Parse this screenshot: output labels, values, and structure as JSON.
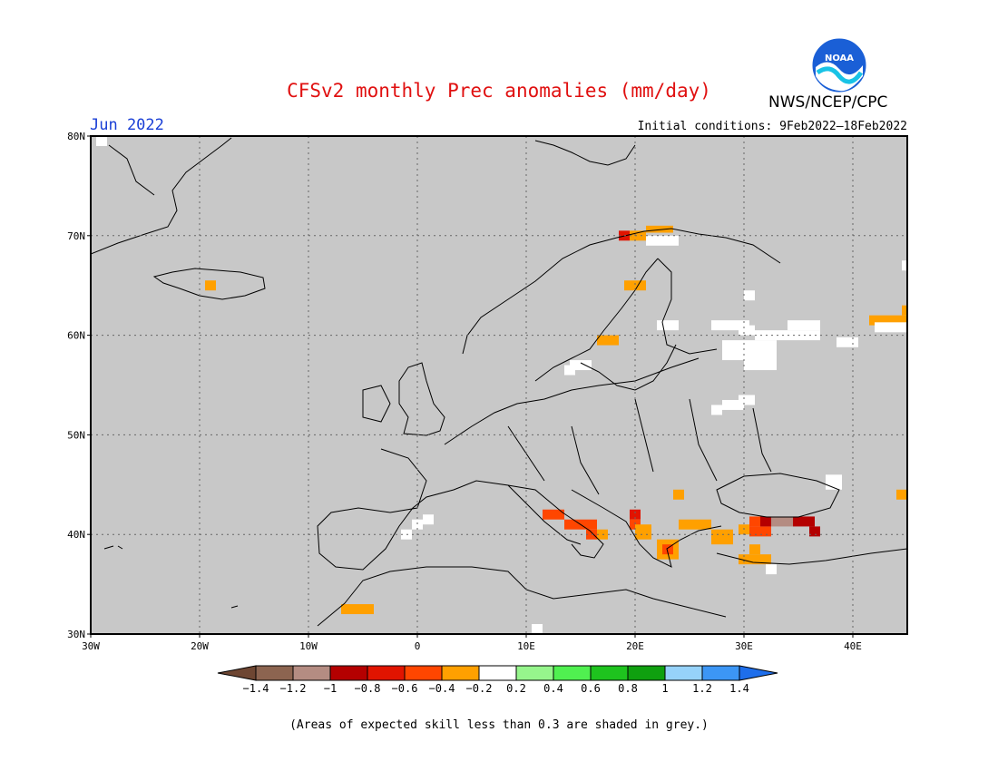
{
  "header": {
    "title": "CFSv2 monthly Prec anomalies (mm/day)",
    "period": "Jun 2022",
    "initial_conditions": "Initial conditions: 9Feb2022–18Feb2022",
    "agency": "NWS/NCEP/CPC",
    "logo_text": "NOAA"
  },
  "map": {
    "lon_range": [
      -30,
      45
    ],
    "lat_range": [
      30,
      80
    ],
    "lon_ticks": [
      {
        "value": -30,
        "label": "30W"
      },
      {
        "value": -20,
        "label": "20W"
      },
      {
        "value": -10,
        "label": "10W"
      },
      {
        "value": 0,
        "label": "0"
      },
      {
        "value": 10,
        "label": "10E"
      },
      {
        "value": 20,
        "label": "20E"
      },
      {
        "value": 30,
        "label": "30E"
      },
      {
        "value": 40,
        "label": "40E"
      }
    ],
    "lat_ticks": [
      {
        "value": 30,
        "label": "30N"
      },
      {
        "value": 40,
        "label": "40N"
      },
      {
        "value": 50,
        "label": "50N"
      },
      {
        "value": 60,
        "label": "60N"
      },
      {
        "value": 70,
        "label": "70N"
      },
      {
        "value": 80,
        "label": "80N"
      }
    ],
    "background_color": "#c8c8c8",
    "gridlines": true,
    "anomaly_cells": [
      {
        "lon": -29.5,
        "lat": 79,
        "w": 1,
        "h": 1,
        "color": "#ffffff"
      },
      {
        "lon": -19.5,
        "lat": 64.5,
        "w": 1,
        "h": 1,
        "color": "#ffa000"
      },
      {
        "lon": 19,
        "lat": 64.5,
        "w": 2,
        "h": 1,
        "color": "#ffa000"
      },
      {
        "lon": 18.5,
        "lat": 69.5,
        "w": 1,
        "h": 1,
        "color": "#e11400"
      },
      {
        "lon": 19.5,
        "lat": 69.5,
        "w": 1.5,
        "h": 1,
        "color": "#ffa000"
      },
      {
        "lon": 21,
        "lat": 69,
        "w": 1.5,
        "h": 1,
        "color": "#ffffff"
      },
      {
        "lon": 21,
        "lat": 70.3,
        "w": 2.5,
        "h": 0.7,
        "color": "#ffa000"
      },
      {
        "lon": 22.5,
        "lat": 69,
        "w": 1.5,
        "h": 1,
        "color": "#ffffff"
      },
      {
        "lon": 16.5,
        "lat": 59,
        "w": 2,
        "h": 1,
        "color": "#ffa000"
      },
      {
        "lon": 22,
        "lat": 60.5,
        "w": 2,
        "h": 1,
        "color": "#ffffff"
      },
      {
        "lon": 27,
        "lat": 60.5,
        "w": 3.5,
        "h": 1,
        "color": "#ffffff"
      },
      {
        "lon": 29.5,
        "lat": 60,
        "w": 1.5,
        "h": 1,
        "color": "#ffffff"
      },
      {
        "lon": 31,
        "lat": 59.5,
        "w": 6,
        "h": 1,
        "color": "#ffffff"
      },
      {
        "lon": 34,
        "lat": 60.5,
        "w": 3,
        "h": 1,
        "color": "#ffffff"
      },
      {
        "lon": 28,
        "lat": 57.5,
        "w": 2,
        "h": 2,
        "color": "#ffffff"
      },
      {
        "lon": 30,
        "lat": 56.5,
        "w": 3,
        "h": 3,
        "color": "#ffffff"
      },
      {
        "lon": 30,
        "lat": 63.5,
        "w": 1,
        "h": 1,
        "color": "#ffffff"
      },
      {
        "lon": 38.5,
        "lat": 58.8,
        "w": 2,
        "h": 1,
        "color": "#ffffff"
      },
      {
        "lon": 41.5,
        "lat": 61,
        "w": 3.5,
        "h": 1,
        "color": "#ffa000"
      },
      {
        "lon": 42,
        "lat": 60.3,
        "w": 3,
        "h": 1,
        "color": "#ffffff"
      },
      {
        "lon": 44.5,
        "lat": 62,
        "w": 0.5,
        "h": 1,
        "color": "#ffa000"
      },
      {
        "lon": 44.5,
        "lat": 66.5,
        "w": 0.5,
        "h": 1,
        "color": "#ffffff"
      },
      {
        "lon": 13.5,
        "lat": 56,
        "w": 1,
        "h": 1,
        "color": "#ffffff"
      },
      {
        "lon": 14,
        "lat": 56.5,
        "w": 2,
        "h": 1,
        "color": "#ffffff"
      },
      {
        "lon": 27,
        "lat": 52,
        "w": 1,
        "h": 1,
        "color": "#ffffff"
      },
      {
        "lon": 28,
        "lat": 52.5,
        "w": 2,
        "h": 1,
        "color": "#ffffff"
      },
      {
        "lon": 29.5,
        "lat": 53,
        "w": 1.5,
        "h": 1,
        "color": "#ffffff"
      },
      {
        "lon": 23.5,
        "lat": 43.5,
        "w": 1,
        "h": 1,
        "color": "#ffa000"
      },
      {
        "lon": 44,
        "lat": 43.5,
        "w": 1,
        "h": 1,
        "color": "#ffa000"
      },
      {
        "lon": 37.5,
        "lat": 44.5,
        "w": 1.5,
        "h": 1.5,
        "color": "#ffffff"
      },
      {
        "lon": 0.5,
        "lat": 41,
        "w": 1,
        "h": 1,
        "color": "#ffffff"
      },
      {
        "lon": -0.5,
        "lat": 40.5,
        "w": 1,
        "h": 1,
        "color": "#ffffff"
      },
      {
        "lon": -1.5,
        "lat": 39.5,
        "w": 1,
        "h": 1,
        "color": "#ffffff"
      },
      {
        "lon": 11.5,
        "lat": 41.5,
        "w": 2,
        "h": 1,
        "color": "#ff4600"
      },
      {
        "lon": 13.5,
        "lat": 40.5,
        "w": 3,
        "h": 1,
        "color": "#ff4600"
      },
      {
        "lon": 15.5,
        "lat": 39.5,
        "w": 1,
        "h": 1,
        "color": "#ff4600"
      },
      {
        "lon": 16.5,
        "lat": 39.5,
        "w": 1,
        "h": 1,
        "color": "#ffa000"
      },
      {
        "lon": 19.5,
        "lat": 41.5,
        "w": 1,
        "h": 1,
        "color": "#e11400"
      },
      {
        "lon": 19.5,
        "lat": 40.5,
        "w": 1,
        "h": 1,
        "color": "#ff4600"
      },
      {
        "lon": 20,
        "lat": 39.5,
        "w": 1.5,
        "h": 1.5,
        "color": "#ffa000"
      },
      {
        "lon": 22,
        "lat": 37.5,
        "w": 2,
        "h": 2,
        "color": "#ffa000"
      },
      {
        "lon": 22.5,
        "lat": 38,
        "w": 1,
        "h": 1,
        "color": "#ff4600"
      },
      {
        "lon": 24,
        "lat": 40.5,
        "w": 3,
        "h": 1,
        "color": "#ffa000"
      },
      {
        "lon": 27,
        "lat": 39,
        "w": 2,
        "h": 1.5,
        "color": "#ffa000"
      },
      {
        "lon": 29.5,
        "lat": 40,
        "w": 1,
        "h": 1,
        "color": "#ffa000"
      },
      {
        "lon": 30.5,
        "lat": 39.8,
        "w": 2,
        "h": 1,
        "color": "#ff4600"
      },
      {
        "lon": 30.5,
        "lat": 40.8,
        "w": 1,
        "h": 1,
        "color": "#ff4600"
      },
      {
        "lon": 31.5,
        "lat": 40.8,
        "w": 1,
        "h": 1,
        "color": "#b40000"
      },
      {
        "lon": 32.5,
        "lat": 40.8,
        "w": 2,
        "h": 1,
        "color": "#b48c82"
      },
      {
        "lon": 34.5,
        "lat": 40.8,
        "w": 2,
        "h": 1,
        "color": "#b40000"
      },
      {
        "lon": 36,
        "lat": 39.8,
        "w": 1,
        "h": 1,
        "color": "#b40000"
      },
      {
        "lon": 30.5,
        "lat": 38,
        "w": 1,
        "h": 1,
        "color": "#ffa000"
      },
      {
        "lon": 29.5,
        "lat": 37,
        "w": 3,
        "h": 1,
        "color": "#ffa000"
      },
      {
        "lon": 32,
        "lat": 36,
        "w": 1,
        "h": 1,
        "color": "#ffffff"
      },
      {
        "lon": -7,
        "lat": 32,
        "w": 3,
        "h": 1,
        "color": "#ffa000"
      },
      {
        "lon": 10.5,
        "lat": 30,
        "w": 1,
        "h": 1,
        "color": "#ffffff"
      }
    ]
  },
  "colorbar": {
    "levels": [
      "-1.4",
      "-1.2",
      "-1",
      "-0.8",
      "-0.6",
      "-0.4",
      "-0.2",
      "0.2",
      "0.4",
      "0.6",
      "0.8",
      "1",
      "1.2",
      "1.4"
    ],
    "colors": [
      "#6e4632",
      "#8c6450",
      "#b48c82",
      "#b40000",
      "#e11400",
      "#ff4600",
      "#ffa000",
      "#ffffff",
      "#96f58c",
      "#50f050",
      "#1ec31e",
      "#0fa00f",
      "#96d2fa",
      "#3c96f5",
      "#1e6eeb"
    ]
  },
  "footnote": "(Areas of expected skill less than 0.3 are shaded in grey.)"
}
